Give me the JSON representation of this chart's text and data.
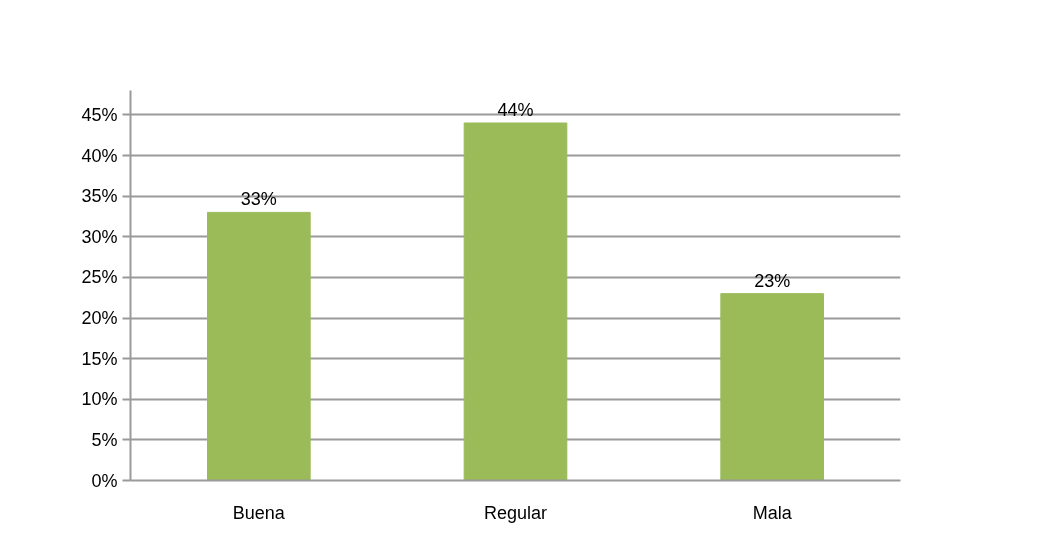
{
  "chart_data": {
    "type": "bar",
    "categories": [
      "Buena",
      "Regular",
      "Mala"
    ],
    "values": [
      33,
      44,
      23
    ],
    "color": "#9bbb59",
    "value_labels": [
      "33%",
      "44%",
      "23%"
    ],
    "ylim": [
      0,
      48
    ],
    "yticks": [
      {
        "value": 0,
        "label": "0%"
      },
      {
        "value": 5,
        "label": "5%"
      },
      {
        "value": 10,
        "label": "10%"
      },
      {
        "value": 15,
        "label": "15%"
      },
      {
        "value": 20,
        "label": "20%"
      },
      {
        "value": 25,
        "label": "25%"
      },
      {
        "value": 30,
        "label": "30%"
      },
      {
        "value": 35,
        "label": "35%"
      },
      {
        "value": 40,
        "label": "40%"
      },
      {
        "value": 45,
        "label": "45%"
      }
    ],
    "grid": "y"
  }
}
